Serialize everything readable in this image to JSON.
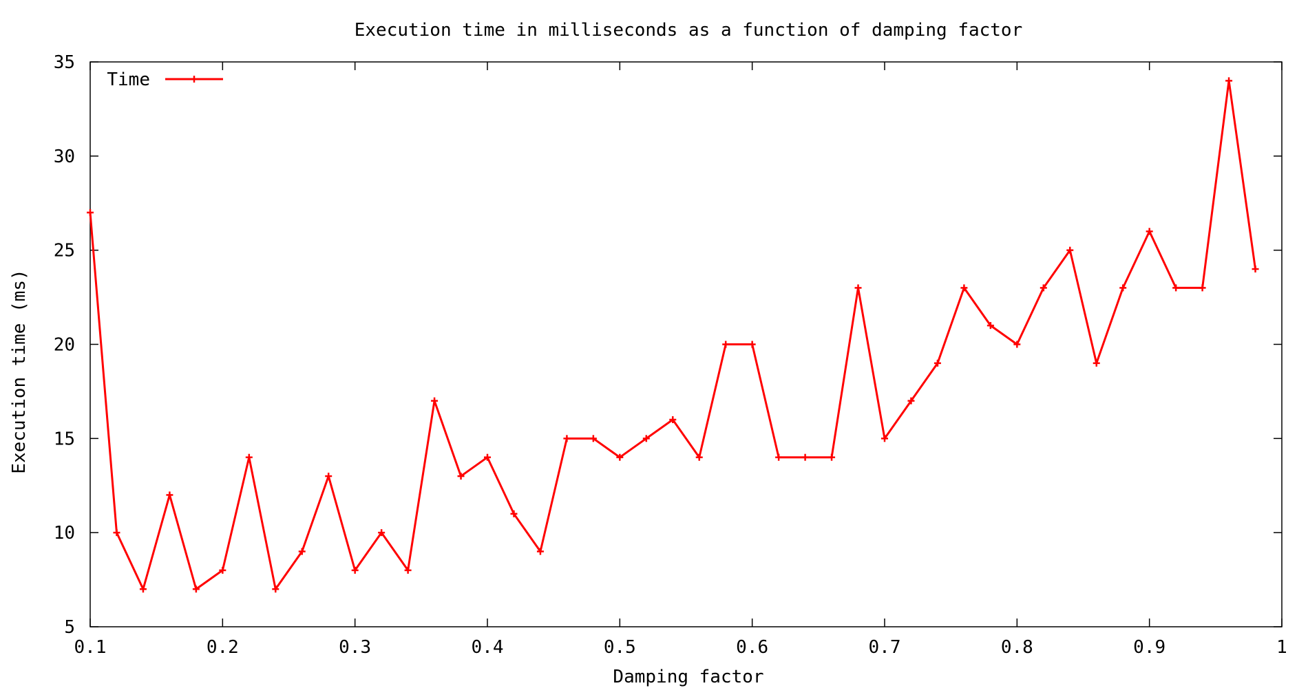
{
  "chart_data": {
    "type": "line",
    "title": "Execution time in milliseconds as a function of damping factor",
    "xlabel": "Damping factor",
    "ylabel": "Execution time (ms)",
    "xlim": [
      0.1,
      1
    ],
    "ylim": [
      5,
      35
    ],
    "xticks": [
      "0.1",
      "0.2",
      "0.3",
      "0.4",
      "0.5",
      "0.6",
      "0.7",
      "0.8",
      "0.9",
      "1"
    ],
    "yticks": [
      "5",
      "10",
      "15",
      "20",
      "25",
      "30",
      "35"
    ],
    "grid": false,
    "legend": "top-left",
    "series": [
      {
        "name": "Time",
        "color": "#ff0000",
        "marker": "plus",
        "x": [
          0.1,
          0.12,
          0.14,
          0.16,
          0.18,
          0.2,
          0.22,
          0.24,
          0.26,
          0.28,
          0.3,
          0.32,
          0.34,
          0.36,
          0.38,
          0.4,
          0.42,
          0.44,
          0.46,
          0.48,
          0.5,
          0.52,
          0.54,
          0.56,
          0.58,
          0.6,
          0.62,
          0.64,
          0.66,
          0.68,
          0.7,
          0.72,
          0.74,
          0.76,
          0.78,
          0.8,
          0.82,
          0.84,
          0.86,
          0.88,
          0.9,
          0.92,
          0.94,
          0.96,
          0.98
        ],
        "values": [
          27,
          10,
          7,
          12,
          7,
          8,
          14,
          7,
          9,
          13,
          8,
          10,
          8,
          17,
          13,
          14,
          11,
          9,
          15,
          15,
          14,
          15,
          16,
          14,
          20,
          20,
          14,
          14,
          14,
          23,
          15,
          17,
          19,
          23,
          21,
          20,
          23,
          25,
          19,
          23,
          26,
          23,
          23,
          34,
          24
        ]
      }
    ]
  }
}
